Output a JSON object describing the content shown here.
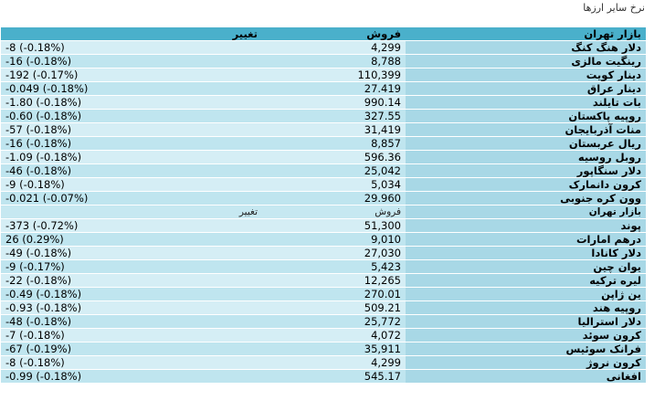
{
  "page": {
    "title": "نرخ سایر ارزها"
  },
  "header": {
    "change": "تغییر",
    "sell": "فروش",
    "market": "بازار تهران"
  },
  "rows": [
    {
      "name": "دلار هنگ کنگ",
      "sell": "4,299",
      "change": "-8 (-0.18%)"
    },
    {
      "name": "رینگیت مالزی",
      "sell": "8,788",
      "change": "-16 (-0.18%)"
    },
    {
      "name": "دینار کویت",
      "sell": "110,399",
      "change": "-192 (-0.17%)"
    },
    {
      "name": "دینار عراق",
      "sell": "27.419",
      "change": "-0.049 (-0.18%)"
    },
    {
      "name": "بات تایلند",
      "sell": "990.14",
      "change": "-1.80 (-0.18%)"
    },
    {
      "name": "روپیه پاکستان",
      "sell": "327.55",
      "change": "-0.60 (-0.18%)"
    },
    {
      "name": "منات آذربایجان",
      "sell": "31,419",
      "change": "-57 (-0.18%)"
    },
    {
      "name": "ریال عربستان",
      "sell": "8,857",
      "change": "-16 (-0.18%)"
    },
    {
      "name": "روبل روسیه",
      "sell": "596.36",
      "change": "-1.09 (-0.18%)"
    },
    {
      "name": "دلار سنگاپور",
      "sell": "25,042",
      "change": "-46 (-0.18%)"
    },
    {
      "name": "کرون دانمارک",
      "sell": "5,034",
      "change": "-9 (-0.18%)"
    },
    {
      "name": "وون کره جنوبی",
      "sell": "29.960",
      "change": "-0.021 (-0.07%)"
    }
  ],
  "subheader": {
    "change": "تغییر",
    "sell": "فروش",
    "market": "بازار تهران"
  },
  "rows2": [
    {
      "name": "پوند",
      "sell": "51,300",
      "change": "-373 (-0.72%)"
    },
    {
      "name": "درهم امارات",
      "sell": "9,010",
      "change": "26 (0.29%)"
    },
    {
      "name": "دلار کانادا",
      "sell": "27,030",
      "change": "-49 (-0.18%)"
    },
    {
      "name": "یوان چین",
      "sell": "5,423",
      "change": "-9 (-0.17%)"
    },
    {
      "name": "لیره ترکیه",
      "sell": "12,265",
      "change": "-22 (-0.18%)"
    },
    {
      "name": "ین ژاپن",
      "sell": "270.01",
      "change": "-0.49 (-0.18%)"
    },
    {
      "name": "روپیه هند",
      "sell": "509.21",
      "change": "-0.93 (-0.18%)"
    },
    {
      "name": "دلار استرالیا",
      "sell": "25,772",
      "change": "-48 (-0.18%)"
    },
    {
      "name": "کرون سوئد",
      "sell": "4,072",
      "change": "-7 (-0.18%)"
    },
    {
      "name": "فرانک سوئیس",
      "sell": "35,911",
      "change": "-67 (-0.19%)"
    },
    {
      "name": "کرون نروژ",
      "sell": "4,299",
      "change": "-8 (-0.18%)"
    },
    {
      "name": "افغانی",
      "sell": "545.17",
      "change": "-0.99 (-0.18%)"
    }
  ]
}
